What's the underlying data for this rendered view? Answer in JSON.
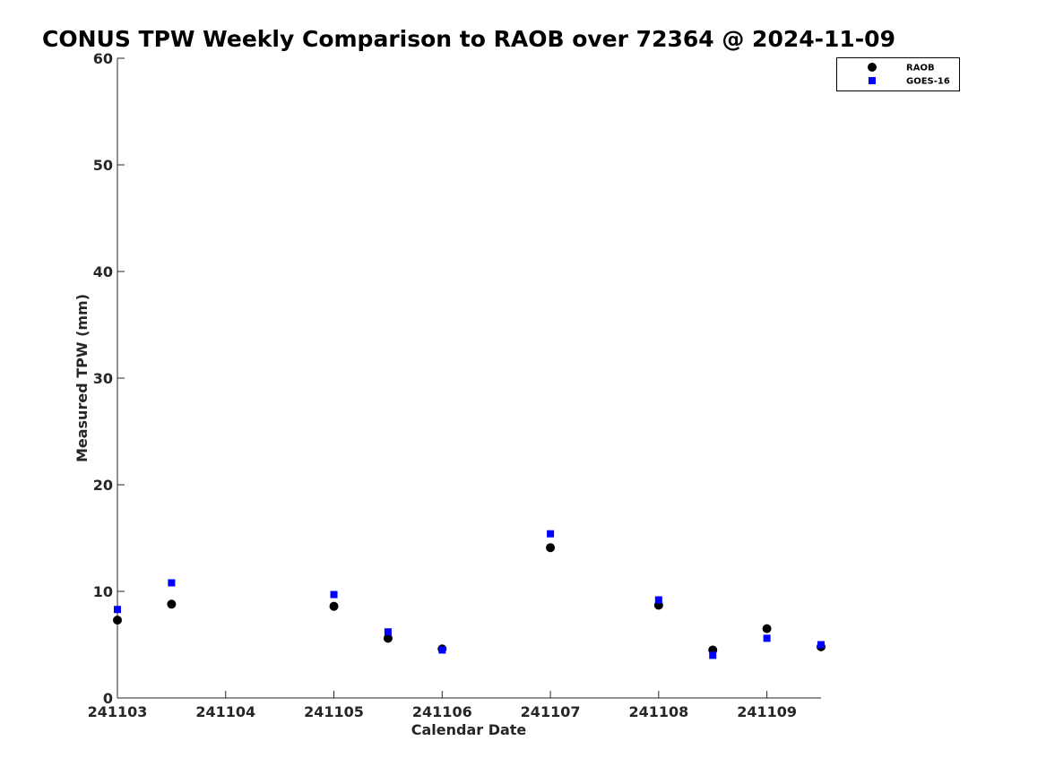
{
  "chart_data": {
    "type": "scatter",
    "title": "CONUS TPW Weekly Comparison to RAOB over 72364 @ 2024-11-09",
    "xlabel": "Calendar Date",
    "ylabel": "Measured TPW (mm)",
    "x_ticks": [
      "241103",
      "241104",
      "241105",
      "241106",
      "241107",
      "241108",
      "241109"
    ],
    "x_range": [
      0,
      6.5
    ],
    "ylim": [
      0,
      60
    ],
    "y_ticks": [
      "0",
      "10",
      "20",
      "30",
      "40",
      "50",
      "60"
    ],
    "grid": false,
    "legend_position": "top-right",
    "series": [
      {
        "name": "RAOB",
        "marker": "circle",
        "color": "#000000",
        "points": [
          {
            "x": 0.0,
            "y": 7.3
          },
          {
            "x": 0.5,
            "y": 8.8
          },
          {
            "x": 2.0,
            "y": 8.6
          },
          {
            "x": 2.5,
            "y": 5.6
          },
          {
            "x": 3.0,
            "y": 4.6
          },
          {
            "x": 4.0,
            "y": 14.1
          },
          {
            "x": 5.0,
            "y": 8.7
          },
          {
            "x": 5.5,
            "y": 4.5
          },
          {
            "x": 6.0,
            "y": 6.5
          },
          {
            "x": 6.5,
            "y": 4.8
          }
        ]
      },
      {
        "name": "GOES-16",
        "marker": "square",
        "color": "#0000ff",
        "points": [
          {
            "x": 0.0,
            "y": 8.3
          },
          {
            "x": 0.5,
            "y": 10.8
          },
          {
            "x": 2.0,
            "y": 9.7
          },
          {
            "x": 2.5,
            "y": 6.2
          },
          {
            "x": 3.0,
            "y": 4.5
          },
          {
            "x": 4.0,
            "y": 15.4
          },
          {
            "x": 5.0,
            "y": 9.2
          },
          {
            "x": 5.5,
            "y": 4.0
          },
          {
            "x": 6.0,
            "y": 5.6
          },
          {
            "x": 6.5,
            "y": 5.0
          }
        ]
      }
    ]
  }
}
